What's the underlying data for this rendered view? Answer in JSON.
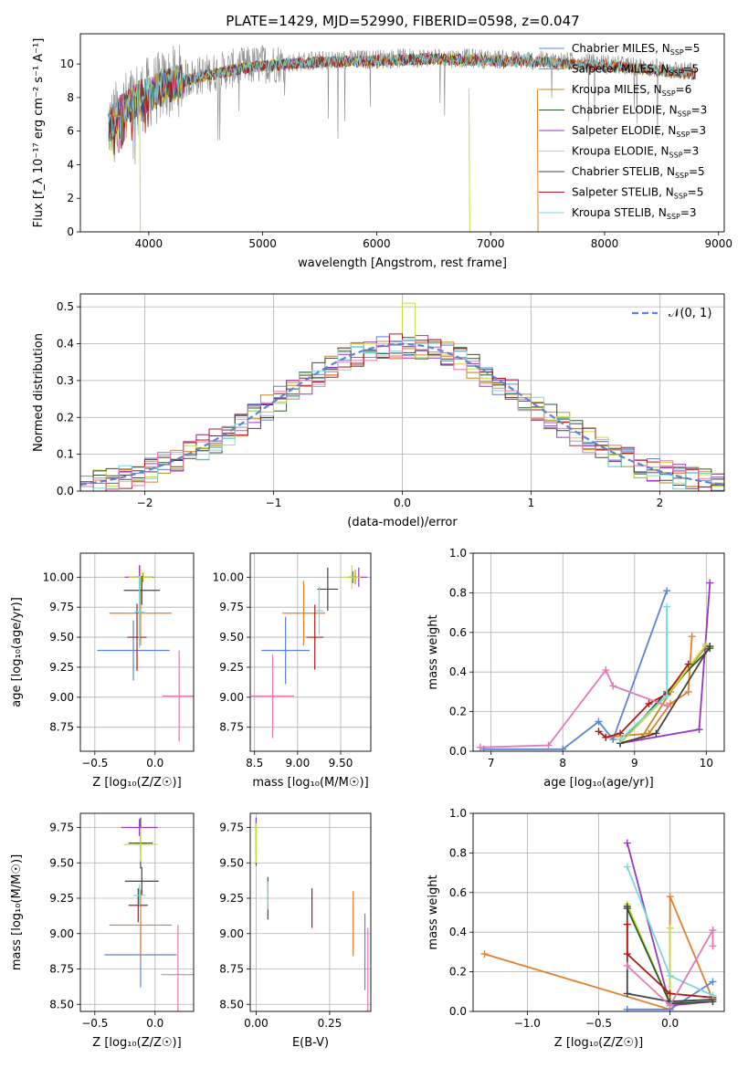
{
  "title": "PLATE=1429, MJD=52990, FIBERID=0598, z=0.047",
  "colors": {
    "Chabrier MILES": "#5b84d6",
    "Salpeter MILES": "#e0802a",
    "Kroupa MILES": "#c08a1e",
    "Chabrier ELODIE": "#2d5a2d",
    "Salpeter ELODIE": "#9a37c2",
    "Kroupa ELODIE": "#c8dc3a",
    "Chabrier STELIB": "#444444",
    "Salpeter STELIB": "#b01818",
    "Kroupa STELIB": "#7ad8dc",
    "data": "#888888",
    "pink": "#e07ab4",
    "green": "#9ad63c"
  },
  "chart_data": [
    {
      "id": "spectrum",
      "type": "line",
      "xlabel": "wavelength [Angstrom, rest frame]",
      "ylabel": "Flux [f_λ 10⁻¹⁷ erg cm⁻² s⁻¹ A⁻¹]",
      "xlim": [
        3400,
        9050
      ],
      "ylim": [
        0,
        11.8
      ],
      "xticks": [
        4000,
        5000,
        6000,
        7000,
        8000,
        9000
      ],
      "yticks": [
        0,
        2,
        4,
        6,
        8,
        10
      ],
      "legend_loc": "right",
      "legend": [
        {
          "label": "Chabrier MILES, N_SSP=5",
          "main": "Chabrier MILES, N",
          "sub": "SSP",
          "suffix": "=5",
          "color": "#5b84d6"
        },
        {
          "label": "Salpeter MILES, N_SSP=5",
          "main": "Salpeter MILES, N",
          "sub": "SSP",
          "suffix": "=5",
          "color": "#e0802a"
        },
        {
          "label": "Kroupa MILES, N_SSP=6",
          "main": "Kroupa MILES, N",
          "sub": "SSP",
          "suffix": "=6",
          "color": "#c08a1e"
        },
        {
          "label": "Chabrier ELODIE, N_SSP=3",
          "main": "Chabrier ELODIE, N",
          "sub": "SSP",
          "suffix": "=3",
          "color": "#2d5a2d"
        },
        {
          "label": "Salpeter ELODIE, N_SSP=3",
          "main": "Salpeter ELODIE, N",
          "sub": "SSP",
          "suffix": "=3",
          "color": "#9a37c2"
        },
        {
          "label": "Kroupa ELODIE, N_SSP=3",
          "main": "Kroupa ELODIE, N",
          "sub": "SSP",
          "suffix": "=3",
          "color": "#c8dc3a"
        },
        {
          "label": "Chabrier STELIB, N_SSP=5",
          "main": "Chabrier STELIB, N",
          "sub": "SSP",
          "suffix": "=5",
          "color": "#444444"
        },
        {
          "label": "Salpeter STELIB, N_SSP=5",
          "main": "Salpeter STELIB, N",
          "sub": "SSP",
          "suffix": "=5",
          "color": "#b01818"
        },
        {
          "label": "Kroupa STELIB, N_SSP=3",
          "main": "Kroupa STELIB, N",
          "sub": "SSP",
          "suffix": "=3",
          "color": "#7ad8dc"
        }
      ],
      "continuum": [
        [
          3650,
          6.3
        ],
        [
          3750,
          7.2
        ],
        [
          3900,
          8.0
        ],
        [
          4000,
          8.3
        ],
        [
          4200,
          8.9
        ],
        [
          4500,
          9.4
        ],
        [
          4800,
          9.8
        ],
        [
          5000,
          10.0
        ],
        [
          5500,
          10.2
        ],
        [
          6000,
          10.3
        ],
        [
          6500,
          10.4
        ],
        [
          7000,
          10.3
        ],
        [
          7500,
          10.2
        ],
        [
          8000,
          10.0
        ],
        [
          8500,
          9.7
        ],
        [
          8800,
          9.5
        ]
      ],
      "dropouts": [
        [
          3920,
          "#c8dc3a"
        ],
        [
          6810,
          "#c8dc3a"
        ],
        [
          7410,
          "#e0802a"
        ]
      ]
    },
    {
      "id": "residuals",
      "type": "bar",
      "xlabel": "(data-model)/error",
      "ylabel": "Normed distribution",
      "xlim": [
        -2.5,
        2.5
      ],
      "ylim": [
        0,
        0.535
      ],
      "xticks": [
        -2,
        -1,
        0,
        1,
        2
      ],
      "yticks": [
        0.0,
        0.1,
        0.2,
        0.3,
        0.4,
        0.5
      ],
      "bin_width": 0.1,
      "legend": [
        {
          "label": "𝒩(0, 1)",
          "style": "dashed",
          "color": "#5b84d6"
        }
      ],
      "histogram_peak": 0.51
    },
    {
      "id": "age-vs-Z",
      "type": "scatter",
      "xlabel": "Z [log₁₀(Z/Z☉)]",
      "ylabel": "age  [log₁₀(age/yr)]",
      "xlim": [
        -0.62,
        0.32
      ],
      "ylim": [
        8.55,
        10.2
      ],
      "xticks": [
        -0.5,
        0.0
      ],
      "yticks": [
        8.75,
        9.0,
        9.25,
        9.5,
        9.75,
        10.0
      ],
      "points": [
        {
          "series": "Chabrier MILES",
          "x": -0.18,
          "y": 9.39,
          "xerr": 0.3,
          "yerr": 0.25
        },
        {
          "series": "Salpeter MILES",
          "x": -0.12,
          "y": 9.7,
          "xerr": 0.26,
          "yerr": 0.27
        },
        {
          "series": "Kroupa MILES",
          "x": -0.1,
          "y": 10.0,
          "xerr": 0.08,
          "yerr": 0.04
        },
        {
          "series": "Chabrier ELODIE",
          "x": -0.12,
          "y": 10.0,
          "xerr": 0.05,
          "yerr": 0.06
        },
        {
          "series": "Salpeter ELODIE",
          "x": -0.13,
          "y": 10.0,
          "xerr": 0.12,
          "yerr": 0.1
        },
        {
          "series": "Kroupa ELODIE",
          "x": -0.12,
          "y": 10.0,
          "xerr": 0.1,
          "yerr": 0.1
        },
        {
          "series": "Chabrier STELIB",
          "x": -0.11,
          "y": 9.89,
          "xerr": 0.15,
          "yerr": 0.12
        },
        {
          "series": "Salpeter STELIB",
          "x": -0.15,
          "y": 9.5,
          "xerr": 0.08,
          "yerr": 0.28
        },
        {
          "series": "Kroupa STELIB",
          "x": -0.13,
          "y": 9.71,
          "xerr": 0.04,
          "yerr": 0.3
        },
        {
          "series": "pink",
          "x": 0.2,
          "y": 9.01,
          "xerr": 0.14,
          "yerr": 0.38
        }
      ]
    },
    {
      "id": "age-vs-mass",
      "type": "scatter",
      "xlabel": "mass [log₁₀(M/M☉)]",
      "ylabel": "",
      "xlim": [
        8.45,
        9.85
      ],
      "ylim": [
        8.55,
        10.2
      ],
      "xticks": [
        8.5,
        9.0,
        9.5
      ],
      "yticks": [
        8.75,
        9.0,
        9.25,
        9.5,
        9.75,
        10.0
      ],
      "points": [
        {
          "series": "Chabrier MILES",
          "x": 8.86,
          "y": 9.39,
          "xerr": 0.28,
          "yerr": 0.28
        },
        {
          "series": "Salpeter MILES",
          "x": 9.07,
          "y": 9.7,
          "xerr": 0.25,
          "yerr": 0.27
        },
        {
          "series": "Kroupa MILES",
          "x": 9.67,
          "y": 10.0,
          "xerr": 0.06,
          "yerr": 0.06
        },
        {
          "series": "Chabrier ELODIE",
          "x": 9.64,
          "y": 10.0,
          "xerr": 0.05,
          "yerr": 0.05
        },
        {
          "series": "Salpeter ELODIE",
          "x": 9.71,
          "y": 10.0,
          "xerr": 0.1,
          "yerr": 0.08
        },
        {
          "series": "Kroupa ELODIE",
          "x": 9.63,
          "y": 10.0,
          "xerr": 0.1,
          "yerr": 0.1
        },
        {
          "series": "Chabrier STELIB",
          "x": 9.35,
          "y": 9.9,
          "xerr": 0.12,
          "yerr": 0.18
        },
        {
          "series": "Salpeter STELIB",
          "x": 9.2,
          "y": 9.5,
          "xerr": 0.1,
          "yerr": 0.27
        },
        {
          "series": "Kroupa STELIB",
          "x": 9.25,
          "y": 9.72,
          "xerr": 0.05,
          "yerr": 0.2
        },
        {
          "series": "pink",
          "x": 8.71,
          "y": 9.01,
          "xerr": 0.25,
          "yerr": 0.35
        }
      ]
    },
    {
      "id": "massweight-vs-age",
      "type": "line",
      "xlabel": "age  [log₁₀(age/yr)]",
      "ylabel": "mass weight",
      "xlim": [
        6.75,
        10.25
      ],
      "ylim": [
        0,
        1.0
      ],
      "xticks": [
        7,
        8,
        9,
        10
      ],
      "yticks": [
        0.0,
        0.2,
        0.4,
        0.6,
        0.8,
        1.0
      ],
      "series": [
        {
          "name": "Chabrier MILES",
          "points": [
            [
              6.9,
              0.01
            ],
            [
              8.0,
              0.01
            ],
            [
              8.5,
              0.15
            ],
            [
              8.7,
              0.06
            ],
            [
              9.45,
              0.81
            ]
          ]
        },
        {
          "name": "Salpeter MILES",
          "points": [
            [
              8.6,
              0.07
            ],
            [
              9.2,
              0.09
            ],
            [
              9.5,
              0.24
            ],
            [
              9.75,
              0.3
            ],
            [
              9.8,
              0.58
            ]
          ]
        },
        {
          "name": "Kroupa MILES",
          "points": [
            [
              8.8,
              0.04
            ],
            [
              9.1,
              0.07
            ],
            [
              9.5,
              0.3
            ],
            [
              10.0,
              0.53
            ]
          ]
        },
        {
          "name": "Chabrier ELODIE",
          "points": [
            [
              8.8,
              0.04
            ],
            [
              9.45,
              0.3
            ],
            [
              10.05,
              0.52
            ]
          ]
        },
        {
          "name": "Salpeter ELODIE",
          "points": [
            [
              8.8,
              0.04
            ],
            [
              9.9,
              0.11
            ],
            [
              10.05,
              0.85
            ]
          ]
        },
        {
          "name": "Kroupa ELODIE",
          "points": [
            [
              8.8,
              0.04
            ],
            [
              9.45,
              0.28
            ],
            [
              10.0,
              0.54
            ]
          ]
        },
        {
          "name": "Chabrier STELIB",
          "points": [
            [
              8.8,
              0.04
            ],
            [
              9.3,
              0.09
            ],
            [
              10.05,
              0.53
            ]
          ]
        },
        {
          "name": "Salpeter STELIB",
          "points": [
            [
              8.5,
              0.1
            ],
            [
              8.6,
              0.07
            ],
            [
              8.8,
              0.09
            ],
            [
              9.2,
              0.24
            ],
            [
              9.45,
              0.29
            ],
            [
              9.75,
              0.44
            ]
          ]
        },
        {
          "name": "Kroupa STELIB",
          "points": [
            [
              8.8,
              0.06
            ],
            [
              9.45,
              0.28
            ],
            [
              9.45,
              0.73
            ]
          ]
        },
        {
          "name": "pink",
          "points": [
            [
              6.85,
              0.02
            ],
            [
              7.8,
              0.03
            ],
            [
              8.6,
              0.41
            ],
            [
              8.7,
              0.33
            ],
            [
              9.45,
              0.23
            ]
          ]
        }
      ]
    },
    {
      "id": "mass-vs-Z",
      "type": "scatter",
      "xlabel": "Z [log₁₀(Z/Z☉)]",
      "ylabel": "mass [log₁₀(M/M☉)]",
      "xlim": [
        -0.62,
        0.32
      ],
      "ylim": [
        8.45,
        9.85
      ],
      "xticks": [
        -0.5,
        0.0
      ],
      "yticks": [
        8.5,
        8.75,
        9.0,
        9.25,
        9.5,
        9.75
      ],
      "points": [
        {
          "series": "Chabrier MILES",
          "x": -0.12,
          "y": 8.85,
          "xerr": 0.3,
          "yerr": 0.23
        },
        {
          "series": "Salpeter MILES",
          "x": -0.12,
          "y": 9.06,
          "xerr": 0.26,
          "yerr": 0.25
        },
        {
          "series": "Kroupa MILES",
          "x": -0.12,
          "y": 9.64,
          "xerr": 0.05,
          "yerr": 0.05
        },
        {
          "series": "Chabrier ELODIE",
          "x": -0.12,
          "y": 9.64,
          "xerr": 0.1,
          "yerr": 0.18
        },
        {
          "series": "Salpeter ELODIE",
          "x": -0.13,
          "y": 9.75,
          "xerr": 0.15,
          "yerr": 0.06
        },
        {
          "series": "Kroupa ELODIE",
          "x": -0.12,
          "y": 9.63,
          "xerr": 0.14,
          "yerr": 0.12
        },
        {
          "series": "Chabrier STELIB",
          "x": -0.11,
          "y": 9.37,
          "xerr": 0.14,
          "yerr": 0.1
        },
        {
          "series": "Salpeter STELIB",
          "x": -0.14,
          "y": 9.2,
          "xerr": 0.08,
          "yerr": 0.12
        },
        {
          "series": "Kroupa STELIB",
          "x": -0.13,
          "y": 9.27,
          "xerr": 0.05,
          "yerr": 0.08
        },
        {
          "series": "pink",
          "x": 0.19,
          "y": 8.71,
          "xerr": 0.14,
          "yerr": 0.35
        }
      ]
    },
    {
      "id": "mass-vs-EBV",
      "type": "scatter",
      "xlabel": "E(B-V)",
      "ylabel": "",
      "xlim": [
        -0.02,
        0.39
      ],
      "ylim": [
        8.45,
        9.85
      ],
      "xticks": [
        0.0,
        0.25
      ],
      "yticks": [
        8.5,
        8.75,
        9.0,
        9.25,
        9.5,
        9.75
      ],
      "points": [
        {
          "series": "Chabrier MILES",
          "x": 0.37,
          "y": 8.87,
          "xerr": 0,
          "yerr": 0.27
        },
        {
          "series": "Salpeter MILES",
          "x": 0.33,
          "y": 9.07,
          "xerr": 0,
          "yerr": 0.23
        },
        {
          "series": "Kroupa MILES",
          "x": 0.0,
          "y": 9.63,
          "xerr": 0,
          "yerr": 0.06
        },
        {
          "series": "Chabrier ELODIE",
          "x": 0.0,
          "y": 9.64,
          "xerr": 0,
          "yerr": 0.16
        },
        {
          "series": "Salpeter ELODIE",
          "x": 0.0,
          "y": 9.74,
          "xerr": 0,
          "yerr": 0.08
        },
        {
          "series": "Kroupa ELODIE",
          "x": 0.0,
          "y": 9.64,
          "xerr": 0,
          "yerr": 0.14
        },
        {
          "series": "Chabrier STELIB",
          "x": 0.04,
          "y": 9.25,
          "xerr": 0,
          "yerr": 0.15
        },
        {
          "series": "Salpeter STELIB",
          "x": 0.19,
          "y": 9.18,
          "xerr": 0,
          "yerr": 0.14
        },
        {
          "series": "Kroupa STELIB",
          "x": 0.04,
          "y": 9.27,
          "xerr": 0,
          "yerr": 0.1
        },
        {
          "series": "pink",
          "x": 0.38,
          "y": 8.74,
          "xerr": 0,
          "yerr": 0.3
        }
      ]
    },
    {
      "id": "massweight-vs-Z",
      "type": "line",
      "xlabel": "Z [log₁₀(Z/Z☉)]",
      "ylabel": "mass weight",
      "xlim": [
        -1.38,
        0.38
      ],
      "ylim": [
        0,
        1.0
      ],
      "xticks": [
        -1.0,
        -0.5,
        0.0
      ],
      "yticks": [
        0.0,
        0.2,
        0.4,
        0.6,
        0.8,
        1.0
      ],
      "series": [
        {
          "name": "Salpeter MILES",
          "points": [
            [
              -1.3,
              0.29
            ],
            [
              0.0,
              0.01
            ],
            [
              0.0,
              0.58
            ],
            [
              0.3,
              0.06
            ]
          ]
        },
        {
          "name": "Chabrier MILES",
          "points": [
            [
              -0.3,
              0.01
            ],
            [
              0.0,
              0.01
            ],
            [
              0.3,
              0.15
            ]
          ]
        },
        {
          "name": "Salpeter ELODIE",
          "points": [
            [
              -0.3,
              0.85
            ],
            [
              0.0,
              0.03
            ],
            [
              0.3,
              0.05
            ]
          ]
        },
        {
          "name": "Kroupa ELODIE",
          "points": [
            [
              -0.3,
              0.54
            ],
            [
              0.0,
              0.04
            ],
            [
              0.0,
              0.42
            ]
          ]
        },
        {
          "name": "Chabrier ELODIE",
          "points": [
            [
              -0.3,
              0.52
            ],
            [
              0.0,
              0.04
            ],
            [
              0.3,
              0.05
            ]
          ]
        },
        {
          "name": "Chabrier STELIB",
          "points": [
            [
              -0.3,
              0.53
            ],
            [
              -0.3,
              0.09
            ],
            [
              0.0,
              0.05
            ],
            [
              0.3,
              0.06
            ]
          ]
        },
        {
          "name": "Salpeter STELIB",
          "points": [
            [
              -0.3,
              0.44
            ],
            [
              -0.3,
              0.29
            ],
            [
              0.0,
              0.09
            ],
            [
              0.3,
              0.07
            ]
          ]
        },
        {
          "name": "Kroupa STELIB",
          "points": [
            [
              -0.3,
              0.73
            ],
            [
              0.0,
              0.18
            ],
            [
              0.3,
              0.08
            ]
          ]
        },
        {
          "name": "pink",
          "points": [
            [
              -0.3,
              0.23
            ],
            [
              0.0,
              0.03
            ],
            [
              0.3,
              0.41
            ],
            [
              0.3,
              0.33
            ]
          ]
        }
      ]
    }
  ]
}
